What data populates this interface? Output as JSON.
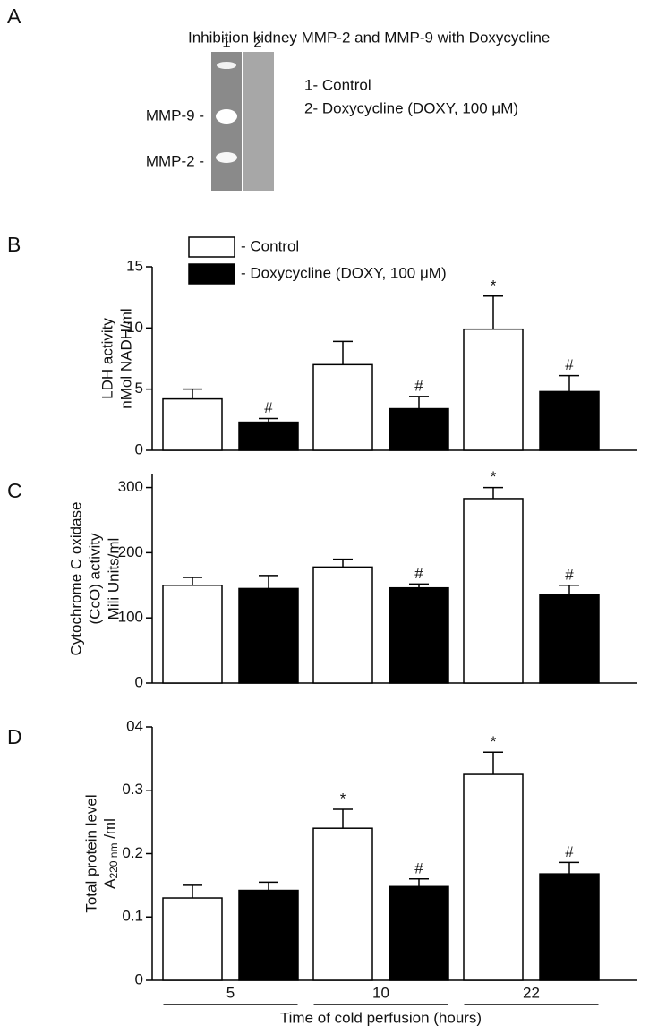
{
  "panel_a": {
    "letter": "A",
    "title": "Inhibition kidney MMP-2 and MMP-9 with Doxycycline",
    "lanes": [
      "1",
      "2"
    ],
    "bands": [
      "MMP-9 -",
      "MMP-2 -"
    ],
    "legend": [
      "1- Control",
      "2- Doxycycline (DOXY, 100 μM)"
    ]
  },
  "chart_data": [
    {
      "type": "bar",
      "letter": "B",
      "ylabel": [
        "LDH activity",
        "nMol NADH/ml"
      ],
      "ylim": [
        0,
        15
      ],
      "yticks": [
        0,
        5,
        10,
        15
      ],
      "legend": true,
      "series": [
        {
          "name": "- Control",
          "color": "#ffffff",
          "values": [
            4.2,
            7.0,
            9.9
          ],
          "errors": [
            0.8,
            1.9,
            2.7
          ],
          "annotations": [
            null,
            null,
            "*"
          ]
        },
        {
          "name": "- Doxycycline (DOXY, 100 μM)",
          "color": "#000000",
          "values": [
            2.3,
            3.4,
            4.8
          ],
          "errors": [
            0.3,
            1.0,
            1.3
          ],
          "annotations": [
            "#",
            "#",
            "#"
          ]
        }
      ]
    },
    {
      "type": "bar",
      "letter": "C",
      "ylabel": [
        "Cytochrome C oxidase",
        "(CcO) activity",
        "Mili Units/ml"
      ],
      "ylim": [
        0,
        320
      ],
      "yticks": [
        0,
        100,
        200,
        300
      ],
      "series": [
        {
          "color": "#ffffff",
          "values": [
            150,
            178,
            283
          ],
          "errors": [
            12,
            12,
            17
          ],
          "annotations": [
            null,
            null,
            "*"
          ]
        },
        {
          "color": "#000000",
          "values": [
            145,
            146,
            135
          ],
          "errors": [
            20,
            6,
            15
          ],
          "annotations": [
            null,
            "#",
            "#"
          ]
        }
      ]
    },
    {
      "type": "bar",
      "letter": "D",
      "ylabel": [
        "Total protein level",
        {
          "text": "A",
          "sub": "220 nm",
          "after": " /ml"
        }
      ],
      "ylim": [
        0,
        0.4
      ],
      "yticks": [
        0,
        0.1,
        0.2,
        0.3,
        {
          "value": 0.4,
          "label": "04"
        }
      ],
      "categories": [
        "5",
        "10",
        "22"
      ],
      "xlabel": "Time of cold perfusion  (hours)",
      "series": [
        {
          "color": "#ffffff",
          "values": [
            0.13,
            0.24,
            0.325
          ],
          "errors": [
            0.02,
            0.03,
            0.035
          ],
          "annotations": [
            null,
            "*",
            "*"
          ]
        },
        {
          "color": "#000000",
          "values": [
            0.142,
            0.148,
            0.168
          ],
          "errors": [
            0.013,
            0.012,
            0.018
          ],
          "annotations": [
            null,
            "#",
            "#"
          ]
        }
      ]
    }
  ]
}
